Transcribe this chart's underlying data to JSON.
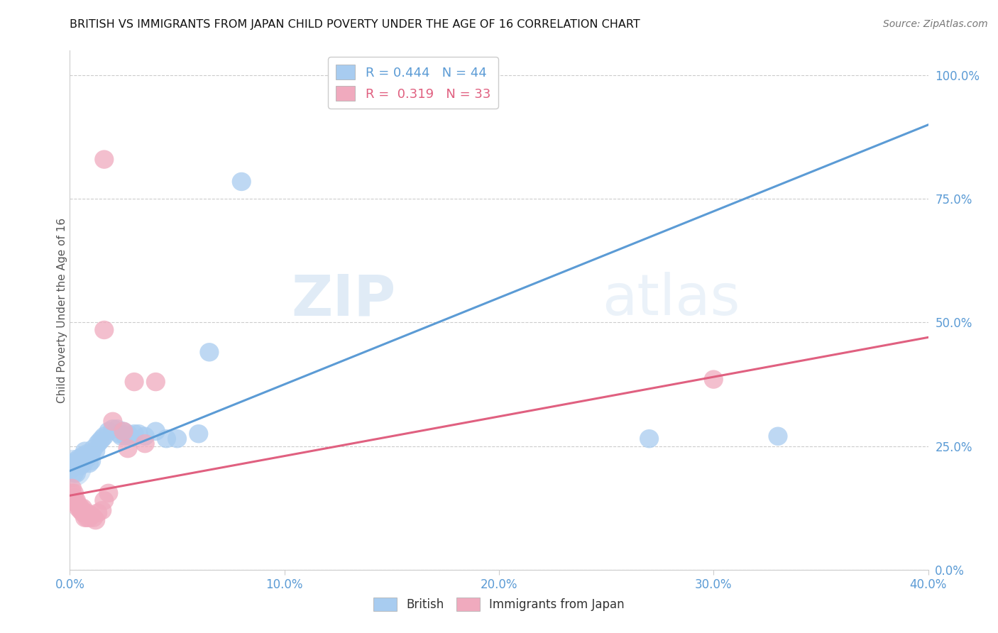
{
  "title": "BRITISH VS IMMIGRANTS FROM JAPAN CHILD POVERTY UNDER THE AGE OF 16 CORRELATION CHART",
  "source": "Source: ZipAtlas.com",
  "ylabel_label": "Child Poverty Under the Age of 16",
  "xlim": [
    0.0,
    0.4
  ],
  "ylim": [
    0.0,
    1.05
  ],
  "xticks": [
    0.0,
    0.1,
    0.2,
    0.3,
    0.4
  ],
  "xticklabels": [
    "0.0%",
    "10.0%",
    "20.0%",
    "30.0%",
    "40.0%"
  ],
  "ytick_positions": [
    0.0,
    0.25,
    0.5,
    0.75,
    1.0
  ],
  "yticklabels": [
    "0.0%",
    "25.0%",
    "50.0%",
    "75.0%",
    "100.0%"
  ],
  "british_color": "#A8CCF0",
  "japan_color": "#F0AABE",
  "british_line_color": "#5B9BD5",
  "japan_line_color": "#E06080",
  "watermark_zip": "ZIP",
  "watermark_atlas": "atlas",
  "R_british": 0.444,
  "N_british": 44,
  "R_japan": 0.319,
  "N_japan": 33,
  "british_line": [
    0.0,
    0.2,
    0.4,
    0.9
  ],
  "japan_line": [
    0.0,
    0.15,
    0.4,
    0.47
  ],
  "british_points": [
    [
      0.001,
      0.205
    ],
    [
      0.002,
      0.195
    ],
    [
      0.002,
      0.215
    ],
    [
      0.003,
      0.195
    ],
    [
      0.003,
      0.22
    ],
    [
      0.004,
      0.21
    ],
    [
      0.004,
      0.225
    ],
    [
      0.005,
      0.21
    ],
    [
      0.005,
      0.22
    ],
    [
      0.006,
      0.215
    ],
    [
      0.006,
      0.23
    ],
    [
      0.007,
      0.22
    ],
    [
      0.007,
      0.24
    ],
    [
      0.008,
      0.225
    ],
    [
      0.008,
      0.235
    ],
    [
      0.009,
      0.215
    ],
    [
      0.01,
      0.235
    ],
    [
      0.01,
      0.22
    ],
    [
      0.011,
      0.245
    ],
    [
      0.012,
      0.24
    ],
    [
      0.013,
      0.255
    ],
    [
      0.014,
      0.26
    ],
    [
      0.015,
      0.265
    ],
    [
      0.016,
      0.27
    ],
    [
      0.018,
      0.28
    ],
    [
      0.02,
      0.285
    ],
    [
      0.022,
      0.285
    ],
    [
      0.023,
      0.275
    ],
    [
      0.024,
      0.27
    ],
    [
      0.025,
      0.28
    ],
    [
      0.026,
      0.27
    ],
    [
      0.027,
      0.275
    ],
    [
      0.028,
      0.27
    ],
    [
      0.03,
      0.275
    ],
    [
      0.032,
      0.275
    ],
    [
      0.035,
      0.27
    ],
    [
      0.04,
      0.28
    ],
    [
      0.045,
      0.265
    ],
    [
      0.05,
      0.265
    ],
    [
      0.06,
      0.275
    ],
    [
      0.065,
      0.44
    ],
    [
      0.08,
      0.785
    ],
    [
      0.27,
      0.265
    ],
    [
      0.33,
      0.27
    ]
  ],
  "japan_points": [
    [
      0.001,
      0.165
    ],
    [
      0.001,
      0.155
    ],
    [
      0.002,
      0.155
    ],
    [
      0.002,
      0.145
    ],
    [
      0.003,
      0.14
    ],
    [
      0.003,
      0.135
    ],
    [
      0.004,
      0.13
    ],
    [
      0.004,
      0.125
    ],
    [
      0.005,
      0.125
    ],
    [
      0.005,
      0.12
    ],
    [
      0.006,
      0.125
    ],
    [
      0.006,
      0.115
    ],
    [
      0.007,
      0.115
    ],
    [
      0.007,
      0.105
    ],
    [
      0.008,
      0.115
    ],
    [
      0.008,
      0.105
    ],
    [
      0.009,
      0.105
    ],
    [
      0.01,
      0.11
    ],
    [
      0.011,
      0.105
    ],
    [
      0.012,
      0.1
    ],
    [
      0.013,
      0.115
    ],
    [
      0.015,
      0.12
    ],
    [
      0.016,
      0.14
    ],
    [
      0.018,
      0.155
    ],
    [
      0.02,
      0.3
    ],
    [
      0.025,
      0.28
    ],
    [
      0.027,
      0.245
    ],
    [
      0.03,
      0.38
    ],
    [
      0.035,
      0.255
    ],
    [
      0.04,
      0.38
    ],
    [
      0.016,
      0.485
    ],
    [
      0.3,
      0.385
    ],
    [
      0.016,
      0.83
    ]
  ]
}
